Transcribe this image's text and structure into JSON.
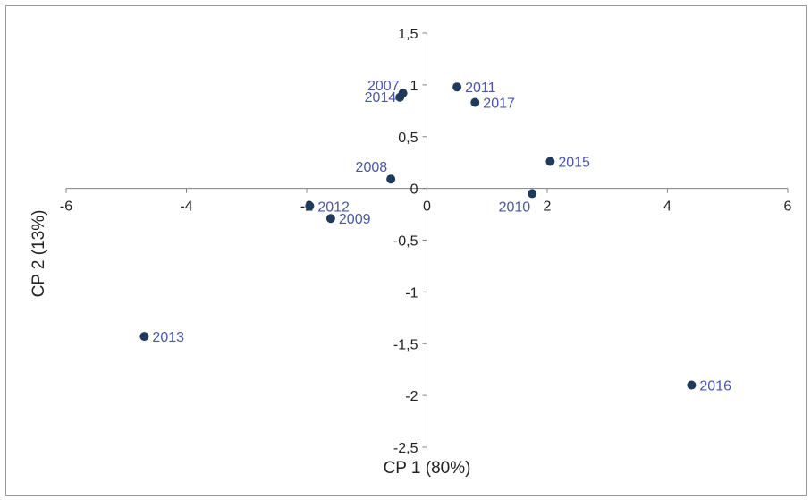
{
  "chart_data": {
    "type": "scatter",
    "xlabel": "CP 1 (80%)",
    "ylabel": "CP 2 (13%)",
    "xlim": [
      -6,
      6
    ],
    "ylim": [
      -2.5,
      1.5
    ],
    "x_ticks": [
      -6,
      -4,
      -2,
      0,
      2,
      4,
      6
    ],
    "x_tick_labels": [
      "-6",
      "-4",
      "-2",
      "0",
      "2",
      "4",
      "6"
    ],
    "y_ticks": [
      1.5,
      1,
      0.5,
      0,
      -0.5,
      -1,
      -1.5,
      -2,
      -2.5
    ],
    "y_tick_labels": [
      "1,5",
      "1",
      "0,5",
      "0",
      "-0,5",
      "-1",
      "-1,5",
      "-2",
      "-2,5"
    ],
    "grid": false,
    "legend": "none",
    "colors": {
      "point": "#1f3a5a",
      "label": "#4a55a8",
      "axis": "#808080"
    },
    "points": [
      {
        "label": "2007",
        "x": -0.4,
        "y": 0.92
      },
      {
        "label": "2014",
        "x": -0.45,
        "y": 0.88
      },
      {
        "label": "2011",
        "x": 0.5,
        "y": 0.98
      },
      {
        "label": "2017",
        "x": 0.8,
        "y": 0.83
      },
      {
        "label": "2015",
        "x": 2.05,
        "y": 0.26
      },
      {
        "label": "2008",
        "x": -0.6,
        "y": 0.09
      },
      {
        "label": "2010",
        "x": 1.75,
        "y": -0.05
      },
      {
        "label": "2012",
        "x": -1.95,
        "y": -0.17
      },
      {
        "label": "2009",
        "x": -1.6,
        "y": -0.29
      },
      {
        "label": "2013",
        "x": -4.7,
        "y": -1.43
      },
      {
        "label": "2016",
        "x": 4.4,
        "y": -1.9
      }
    ]
  }
}
